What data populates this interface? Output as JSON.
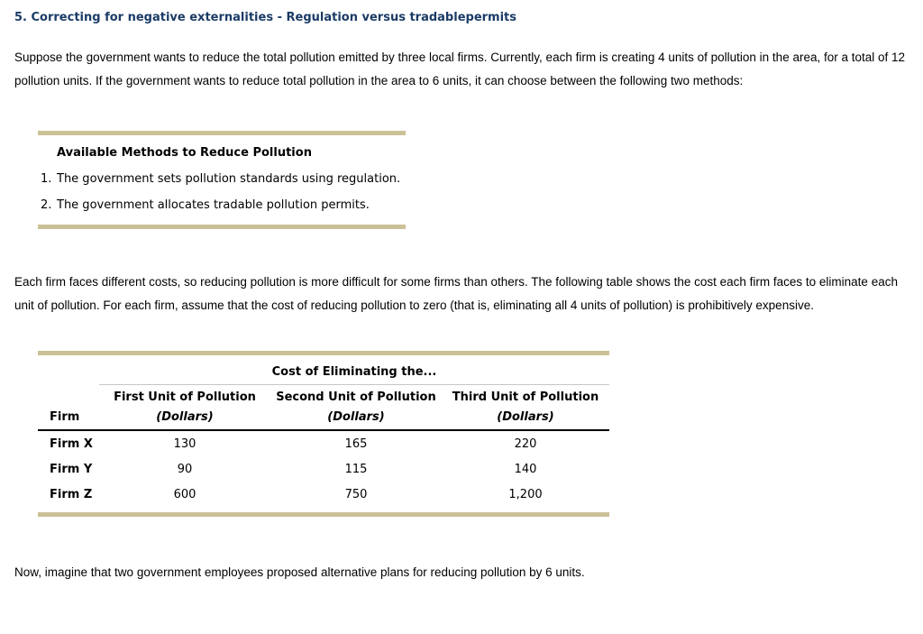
{
  "page": {
    "title": "5. Correcting for negative externalities - Regulation versus tradablepermits",
    "intro_paragraph": "Suppose the government wants to reduce the total pollution emitted by three local firms. Currently, each firm is creating 4 units of pollution in the area, for a total of 12 pollution units. If the government wants to reduce total pollution in the area to 6 units, it can choose between the following two methods:",
    "costs_paragraph": "Each firm faces different costs, so reducing pollution is more difficult for some firms than others. The following table shows the cost each firm faces to eliminate each unit of pollution. For each firm, assume that the cost of reducing pollution to zero (that is, eliminating all 4 units of pollution) is prohibitively expensive.",
    "closing_paragraph": "Now, imagine that two government employees proposed alternative plans for reducing pollution by 6 units."
  },
  "methods_box": {
    "title": "Available Methods to Reduce Pollution",
    "items": [
      {
        "number": "1.",
        "text": "The government sets pollution standards using regulation."
      },
      {
        "number": "2.",
        "text": "The government allocates tradable pollution permits."
      }
    ]
  },
  "cost_table": {
    "span_header": "Cost of Eliminating the...",
    "firm_header": "Firm",
    "columns": [
      {
        "label": "First Unit of Pollution",
        "unit": "(Dollars)"
      },
      {
        "label": "Second Unit of Pollution",
        "unit": "(Dollars)"
      },
      {
        "label": "Third Unit of Pollution",
        "unit": "(Dollars)"
      }
    ],
    "rows": [
      {
        "firm": "Firm X",
        "values": [
          "130",
          "165",
          "220"
        ]
      },
      {
        "firm": "Firm Y",
        "values": [
          "90",
          "115",
          "140"
        ]
      },
      {
        "firm": "Firm Z",
        "values": [
          "600",
          "750",
          "1,200"
        ]
      }
    ]
  },
  "colors": {
    "title_text": "#1b3b66",
    "rule_tan": "#cbc197",
    "rule_gray": "#c6c6c6",
    "rule_black": "#000000"
  }
}
